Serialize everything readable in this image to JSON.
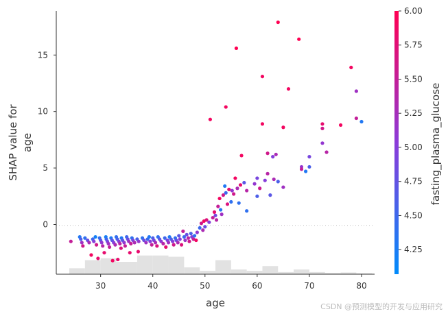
{
  "chart_data": {
    "type": "scatter",
    "xlabel": "age",
    "ylabel": [
      "SHAP value for",
      "age"
    ],
    "xlim": [
      21.5,
      82.5
    ],
    "ylim": [
      -4.4,
      18.9
    ],
    "x_ticks": [
      30,
      40,
      50,
      60,
      70,
      80
    ],
    "y_ticks": [
      0,
      5,
      10,
      15
    ],
    "zero_line": true,
    "colorbar": {
      "label": "fasting_plasma_glucose",
      "min": 4.07,
      "max": 6.0,
      "ticks": [
        4.25,
        4.5,
        4.75,
        5.0,
        5.25,
        5.5,
        5.75,
        6.0
      ],
      "tick_labels": [
        "4.25",
        "4.50",
        "4.75",
        "5.00",
        "5.25",
        "5.50",
        "5.75",
        "6.00"
      ],
      "colors": [
        "#008bfb",
        "#8b3bd9",
        "#ff0052"
      ]
    },
    "histogram": {
      "bins": [
        [
          24,
          27,
          0.28
        ],
        [
          27,
          30,
          0.66
        ],
        [
          30,
          33,
          0.75
        ],
        [
          33,
          37,
          0.58
        ],
        [
          37,
          40,
          0.88
        ],
        [
          40,
          43,
          0.88
        ],
        [
          43,
          46,
          0.82
        ],
        [
          46,
          49,
          0.32
        ],
        [
          49,
          52,
          0.16
        ],
        [
          52,
          55,
          0.66
        ],
        [
          55,
          58,
          0.22
        ],
        [
          58,
          61,
          0.16
        ],
        [
          61,
          64,
          0.38
        ],
        [
          64,
          67,
          0.1
        ],
        [
          67,
          70,
          0.22
        ],
        [
          70,
          73,
          0.1
        ],
        [
          73,
          76,
          0.06
        ],
        [
          76,
          79,
          0.08
        ],
        [
          79,
          82,
          0.04
        ]
      ]
    },
    "points": [
      [
        24.3,
        -1.5,
        5.5
      ],
      [
        26,
        -1.1,
        4.3
      ],
      [
        26.2,
        -1.3,
        4.6
      ],
      [
        26.4,
        -1.6,
        5.2
      ],
      [
        26.6,
        -1.9,
        5.6
      ],
      [
        27,
        -1.2,
        4.4
      ],
      [
        27.5,
        -1.4,
        4.8
      ],
      [
        27.8,
        -1.6,
        5.3
      ],
      [
        28.2,
        -2.7,
        5.9
      ],
      [
        28.5,
        -1.3,
        4.5
      ],
      [
        28.7,
        -1.5,
        5.0
      ],
      [
        29,
        -1.1,
        4.2
      ],
      [
        29.2,
        -1.8,
        5.6
      ],
      [
        29.5,
        -3.0,
        5.8
      ],
      [
        29.8,
        -1.2,
        4.4
      ],
      [
        30,
        -1.4,
        4.7
      ],
      [
        30.2,
        -1.6,
        5.1
      ],
      [
        30.4,
        -1.9,
        5.4
      ],
      [
        30.7,
        -2.5,
        5.8
      ],
      [
        31,
        -1.1,
        4.2
      ],
      [
        31.1,
        -1.3,
        4.5
      ],
      [
        31.3,
        -1.5,
        4.9
      ],
      [
        31.5,
        -1.7,
        5.2
      ],
      [
        31.7,
        -2.0,
        5.5
      ],
      [
        32,
        -1.2,
        4.3
      ],
      [
        32.2,
        -1.4,
        4.7
      ],
      [
        32.3,
        -3.2,
        5.9
      ],
      [
        32.5,
        -1.6,
        5.0
      ],
      [
        32.8,
        -1.8,
        5.3
      ],
      [
        33,
        -1.1,
        4.4
      ],
      [
        33.2,
        -1.3,
        4.6
      ],
      [
        33.3,
        -3.1,
        5.8
      ],
      [
        33.5,
        -1.5,
        5.0
      ],
      [
        33.7,
        -1.7,
        5.4
      ],
      [
        33.9,
        -2.1,
        5.7
      ],
      [
        34,
        -1.2,
        4.3
      ],
      [
        34.2,
        -1.4,
        4.7
      ],
      [
        34.5,
        -1.6,
        5.1
      ],
      [
        34.7,
        -1.9,
        5.5
      ],
      [
        35,
        -1.1,
        4.5
      ],
      [
        35.2,
        -1.3,
        4.8
      ],
      [
        35.4,
        -1.5,
        5.2
      ],
      [
        35.6,
        -2.5,
        5.8
      ],
      [
        35.8,
        -1.7,
        5.5
      ],
      [
        36,
        -1.2,
        4.4
      ],
      [
        36.2,
        -1.4,
        4.9
      ],
      [
        36.5,
        -1.6,
        5.3
      ],
      [
        37,
        -1.3,
        4.6
      ],
      [
        37.3,
        -1.5,
        5.1
      ],
      [
        37.2,
        -2.4,
        5.8
      ],
      [
        38,
        -1.2,
        4.4
      ],
      [
        38.3,
        -1.4,
        4.8
      ],
      [
        38.7,
        -1.6,
        5.2
      ],
      [
        39,
        -1.3,
        4.5
      ],
      [
        39.3,
        -1.1,
        4.3
      ],
      [
        39.5,
        -1.5,
        5.0
      ],
      [
        39.8,
        -1.8,
        5.5
      ],
      [
        40,
        -1.2,
        4.6
      ],
      [
        40.2,
        -1.4,
        4.9
      ],
      [
        40.5,
        -1.6,
        5.3
      ],
      [
        40.8,
        -1.9,
        5.7
      ],
      [
        41,
        -1.1,
        4.4
      ],
      [
        41.3,
        -1.3,
        4.7
      ],
      [
        41.6,
        -1.5,
        5.1
      ],
      [
        42,
        -1.7,
        5.4
      ],
      [
        42.3,
        -1.2,
        4.5
      ],
      [
        42.5,
        -2.0,
        5.8
      ],
      [
        42.8,
        -1.4,
        4.9
      ],
      [
        43,
        -1.6,
        5.2
      ],
      [
        43.2,
        -1.1,
        4.3
      ],
      [
        43.5,
        -1.3,
        4.6
      ],
      [
        43.8,
        -1.5,
        5.0
      ],
      [
        44,
        -1.8,
        5.6
      ],
      [
        44.3,
        -1.2,
        4.4
      ],
      [
        44.5,
        -1.4,
        4.8
      ],
      [
        44.8,
        -1.6,
        5.3
      ],
      [
        45,
        -1.0,
        4.7
      ],
      [
        45.2,
        -1.3,
        5.0
      ],
      [
        45.5,
        -1.8,
        5.7
      ],
      [
        45.8,
        -0.6,
        5.5
      ],
      [
        46,
        -1.1,
        4.5
      ],
      [
        46.2,
        -1.4,
        5.2
      ],
      [
        46.5,
        -0.9,
        4.8
      ],
      [
        46.8,
        -1.2,
        5.4
      ],
      [
        47,
        -1.5,
        5.6
      ],
      [
        47.3,
        -0.8,
        4.6
      ],
      [
        47.5,
        -1.1,
        5.0
      ],
      [
        47.8,
        -1.3,
        5.5
      ],
      [
        48,
        -1.0,
        4.4
      ],
      [
        48.3,
        -1.4,
        5.9
      ],
      [
        48.5,
        -0.7,
        5.1
      ],
      [
        49,
        -0.3,
        4.5
      ],
      [
        49.3,
        0.1,
        5.6
      ],
      [
        49.6,
        -0.5,
        5.3
      ],
      [
        49.8,
        0.3,
        5.9
      ],
      [
        50,
        -0.2,
        4.8
      ],
      [
        50.3,
        0.4,
        5.7
      ],
      [
        50.8,
        0.2,
        5.0
      ],
      [
        51,
        9.3,
        5.9
      ],
      [
        51.5,
        0.6,
        5.5
      ],
      [
        51.8,
        1.1,
        5.8
      ],
      [
        52,
        0.8,
        4.9
      ],
      [
        52.2,
        0.4,
        5.4
      ],
      [
        52.5,
        1.6,
        5.5
      ],
      [
        52.8,
        2.3,
        5.9
      ],
      [
        53,
        1.3,
        4.3
      ],
      [
        53.2,
        0.9,
        5.2
      ],
      [
        53.5,
        2.6,
        5.6
      ],
      [
        53.8,
        3.4,
        4.3
      ],
      [
        54,
        10.4,
        5.9
      ],
      [
        54,
        2.8,
        4.5
      ],
      [
        54.3,
        1.8,
        5.7
      ],
      [
        54.6,
        3.1,
        5.8
      ],
      [
        55,
        2.0,
        4.4
      ],
      [
        55.2,
        3.0,
        5.1
      ],
      [
        55.5,
        2.7,
        5.6
      ],
      [
        55.8,
        4.1,
        5.9
      ],
      [
        56,
        15.6,
        6.0
      ],
      [
        56.2,
        3.2,
        5.3
      ],
      [
        56.5,
        1.9,
        4.4
      ],
      [
        56.8,
        3.5,
        5.8
      ],
      [
        57,
        6.1,
        5.9
      ],
      [
        57.5,
        3.7,
        4.7
      ],
      [
        58,
        1.2,
        4.4
      ],
      [
        58,
        3.0,
        5.4
      ],
      [
        59.5,
        3.6,
        5.1
      ],
      [
        60,
        4.1,
        4.9
      ],
      [
        60,
        2.5,
        4.6
      ],
      [
        60.5,
        3.2,
        5.6
      ],
      [
        61,
        13.1,
        5.9
      ],
      [
        61,
        8.9,
        5.9
      ],
      [
        61.5,
        3.9,
        5.0
      ],
      [
        62,
        6.3,
        5.6
      ],
      [
        62,
        4.5,
        5.4
      ],
      [
        62.5,
        2.6,
        4.7
      ],
      [
        63,
        6.0,
        5.0
      ],
      [
        63.2,
        4.0,
        5.3
      ],
      [
        63.6,
        6.2,
        5.3
      ],
      [
        64,
        17.9,
        6.0
      ],
      [
        64,
        3.8,
        4.6
      ],
      [
        65,
        8.6,
        5.9
      ],
      [
        65,
        3.3,
        5.2
      ],
      [
        66,
        12.0,
        5.9
      ],
      [
        68,
        16.4,
        6.0
      ],
      [
        68.5,
        5.1,
        5.1
      ],
      [
        68.5,
        4.9,
        5.5
      ],
      [
        69.3,
        4.7,
        4.3
      ],
      [
        70,
        6.0,
        4.9
      ],
      [
        70,
        5.1,
        4.6
      ],
      [
        72.5,
        8.5,
        5.6
      ],
      [
        72.5,
        8.9,
        5.8
      ],
      [
        72.5,
        7.2,
        5.1
      ],
      [
        73.3,
        6.4,
        5.4
      ],
      [
        76,
        8.8,
        5.9
      ],
      [
        78,
        13.9,
        5.9
      ],
      [
        79,
        11.8,
        5.2
      ],
      [
        79,
        9.4,
        5.5
      ],
      [
        80,
        9.1,
        4.3
      ]
    ]
  },
  "watermark": "CSDN @预测模型的开发与应用研究"
}
